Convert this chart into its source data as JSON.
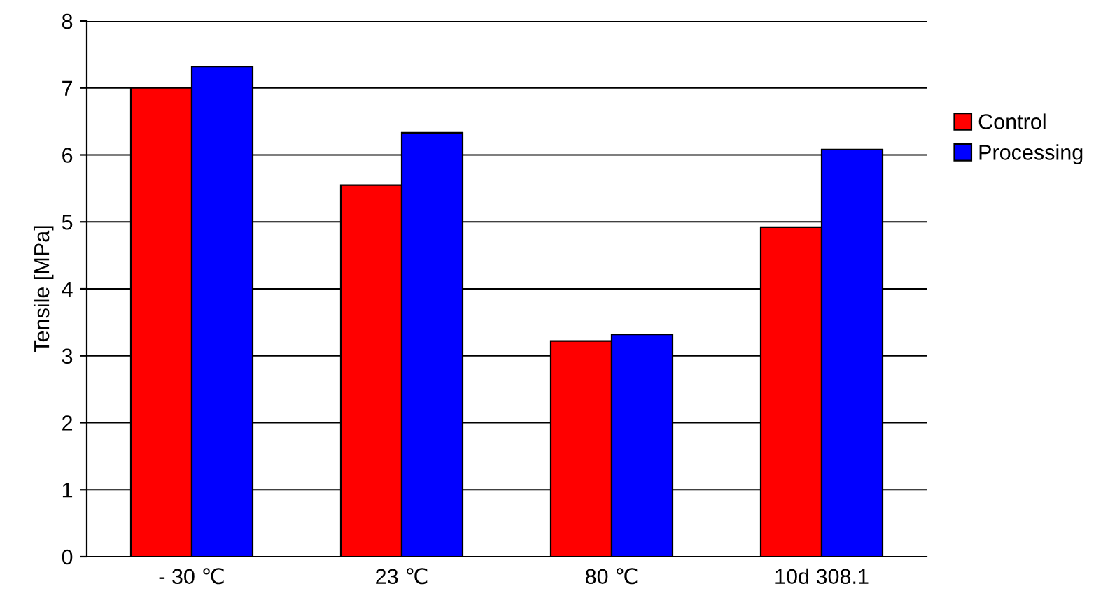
{
  "chart_data": {
    "type": "bar",
    "ylabel": "Tensile [MPa]",
    "categories": [
      "- 30 ℃",
      "23 ℃",
      "80 ℃",
      "10d 308.1"
    ],
    "series": [
      {
        "name": "Control",
        "color": "#ff0000",
        "values": [
          7.0,
          5.55,
          3.22,
          4.92
        ]
      },
      {
        "name": "Processing",
        "color": "#0000ff",
        "values": [
          7.32,
          6.33,
          3.32,
          6.08
        ]
      }
    ],
    "ylim": [
      0,
      8
    ],
    "yticks": [
      0,
      1,
      2,
      3,
      4,
      5,
      6,
      7,
      8
    ],
    "grid": "y",
    "legend": "right"
  }
}
